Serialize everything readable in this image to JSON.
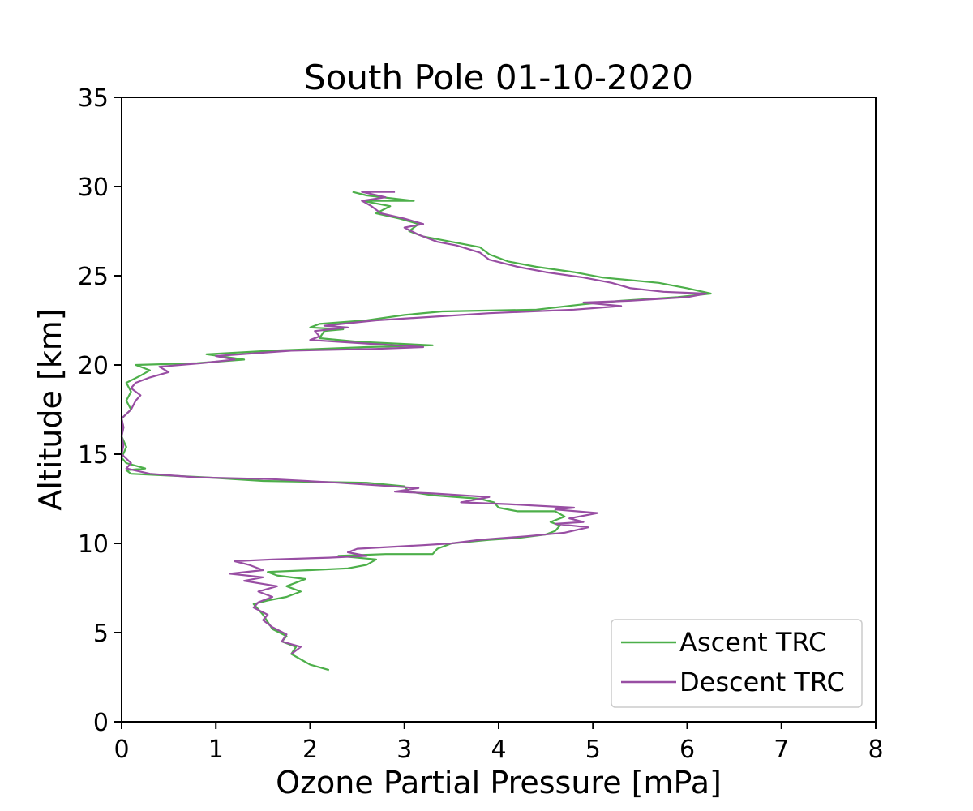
{
  "chart_data": {
    "type": "line",
    "title": "South Pole  01-10-2020",
    "xlabel": "Ozone Partial Pressure [mPa]",
    "ylabel": "Altitude [km]",
    "xlim": [
      0,
      8
    ],
    "ylim": [
      0,
      35
    ],
    "xticks": [
      "0",
      "1",
      "2",
      "3",
      "4",
      "5",
      "6",
      "7",
      "8"
    ],
    "yticks": [
      "0",
      "5",
      "10",
      "15",
      "20",
      "25",
      "30",
      "35"
    ],
    "grid": false,
    "legend_position": "bottom-right",
    "colors": {
      "ascent": "#4daf4a",
      "descent": "#984ea3"
    },
    "series": [
      {
        "name": "Ascent TRC",
        "color": "#4daf4a",
        "points": [
          [
            2.2,
            2.9
          ],
          [
            2.0,
            3.2
          ],
          [
            1.9,
            3.5
          ],
          [
            1.8,
            3.8
          ],
          [
            1.85,
            4.2
          ],
          [
            1.7,
            4.5
          ],
          [
            1.75,
            4.8
          ],
          [
            1.6,
            5.2
          ],
          [
            1.55,
            5.6
          ],
          [
            1.5,
            6.0
          ],
          [
            1.45,
            6.3
          ],
          [
            1.4,
            6.6
          ],
          [
            1.55,
            6.8
          ],
          [
            1.75,
            7.0
          ],
          [
            1.9,
            7.3
          ],
          [
            1.75,
            7.6
          ],
          [
            1.95,
            8.0
          ],
          [
            1.65,
            8.2
          ],
          [
            1.55,
            8.4
          ],
          [
            2.0,
            8.5
          ],
          [
            2.4,
            8.6
          ],
          [
            2.6,
            8.8
          ],
          [
            2.7,
            9.1
          ],
          [
            2.3,
            9.3
          ],
          [
            2.8,
            9.4
          ],
          [
            3.3,
            9.4
          ],
          [
            3.35,
            9.7
          ],
          [
            3.5,
            10.0
          ],
          [
            3.9,
            10.2
          ],
          [
            4.2,
            10.3
          ],
          [
            4.5,
            10.5
          ],
          [
            4.6,
            10.7
          ],
          [
            4.65,
            11.0
          ],
          [
            4.55,
            11.2
          ],
          [
            4.7,
            11.5
          ],
          [
            4.6,
            11.8
          ],
          [
            4.2,
            11.8
          ],
          [
            4.0,
            12.0
          ],
          [
            3.95,
            12.3
          ],
          [
            3.8,
            12.5
          ],
          [
            3.3,
            12.7
          ],
          [
            3.05,
            12.9
          ],
          [
            3.0,
            13.2
          ],
          [
            2.6,
            13.4
          ],
          [
            1.5,
            13.5
          ],
          [
            0.9,
            13.7
          ],
          [
            0.5,
            13.8
          ],
          [
            0.1,
            13.9
          ],
          [
            0.05,
            14.1
          ],
          [
            0.25,
            14.2
          ],
          [
            0.05,
            14.5
          ],
          [
            0.0,
            14.8
          ],
          [
            0.05,
            15.4
          ],
          [
            0.0,
            16.0
          ],
          [
            0.02,
            16.5
          ],
          [
            0.0,
            17.0
          ],
          [
            0.1,
            17.5
          ],
          [
            0.05,
            18.0
          ],
          [
            0.1,
            18.5
          ],
          [
            0.05,
            19.0
          ],
          [
            0.2,
            19.4
          ],
          [
            0.3,
            19.7
          ],
          [
            0.15,
            20.0
          ],
          [
            0.8,
            20.1
          ],
          [
            1.3,
            20.3
          ],
          [
            0.9,
            20.6
          ],
          [
            1.6,
            20.8
          ],
          [
            2.6,
            21.0
          ],
          [
            3.3,
            21.1
          ],
          [
            2.5,
            21.3
          ],
          [
            2.1,
            21.5
          ],
          [
            2.15,
            21.9
          ],
          [
            2.35,
            22.0
          ],
          [
            2.0,
            22.1
          ],
          [
            2.1,
            22.3
          ],
          [
            2.6,
            22.5
          ],
          [
            3.0,
            22.8
          ],
          [
            3.4,
            23.0
          ],
          [
            4.4,
            23.1
          ],
          [
            4.9,
            23.4
          ],
          [
            5.3,
            23.6
          ],
          [
            5.9,
            23.8
          ],
          [
            6.25,
            24.0
          ],
          [
            6.0,
            24.3
          ],
          [
            5.7,
            24.6
          ],
          [
            5.1,
            24.9
          ],
          [
            4.8,
            25.2
          ],
          [
            4.4,
            25.5
          ],
          [
            4.1,
            25.8
          ],
          [
            3.9,
            26.2
          ],
          [
            3.8,
            26.6
          ],
          [
            3.5,
            26.9
          ],
          [
            3.2,
            27.2
          ],
          [
            3.05,
            27.5
          ],
          [
            3.15,
            27.9
          ],
          [
            2.95,
            28.2
          ],
          [
            2.7,
            28.5
          ],
          [
            2.85,
            28.9
          ],
          [
            2.55,
            29.2
          ],
          [
            3.1,
            29.2
          ],
          [
            2.6,
            29.5
          ],
          [
            2.45,
            29.7
          ]
        ]
      },
      {
        "name": "Descent TRC",
        "color": "#984ea3",
        "points": [
          [
            1.8,
            3.8
          ],
          [
            1.9,
            4.2
          ],
          [
            1.7,
            4.5
          ],
          [
            1.75,
            4.9
          ],
          [
            1.6,
            5.3
          ],
          [
            1.5,
            5.7
          ],
          [
            1.55,
            6.0
          ],
          [
            1.4,
            6.4
          ],
          [
            1.45,
            6.7
          ],
          [
            1.6,
            7.0
          ],
          [
            1.45,
            7.3
          ],
          [
            1.65,
            7.6
          ],
          [
            1.3,
            7.9
          ],
          [
            1.5,
            8.1
          ],
          [
            1.15,
            8.3
          ],
          [
            1.5,
            8.5
          ],
          [
            1.35,
            8.8
          ],
          [
            1.2,
            9.0
          ],
          [
            1.6,
            9.1
          ],
          [
            2.2,
            9.2
          ],
          [
            2.6,
            9.3
          ],
          [
            2.4,
            9.5
          ],
          [
            2.5,
            9.7
          ],
          [
            3.2,
            9.9
          ],
          [
            3.5,
            10.0
          ],
          [
            3.8,
            10.2
          ],
          [
            4.3,
            10.4
          ],
          [
            4.7,
            10.6
          ],
          [
            4.95,
            10.9
          ],
          [
            4.6,
            11.1
          ],
          [
            4.9,
            11.2
          ],
          [
            4.75,
            11.4
          ],
          [
            5.05,
            11.7
          ],
          [
            4.6,
            11.9
          ],
          [
            4.8,
            12.0
          ],
          [
            4.1,
            12.2
          ],
          [
            3.6,
            12.3
          ],
          [
            3.9,
            12.6
          ],
          [
            3.3,
            12.8
          ],
          [
            2.9,
            12.9
          ],
          [
            3.15,
            13.1
          ],
          [
            2.3,
            13.4
          ],
          [
            1.6,
            13.6
          ],
          [
            0.8,
            13.7
          ],
          [
            0.3,
            13.9
          ],
          [
            0.05,
            14.2
          ],
          [
            0.1,
            14.5
          ],
          [
            0.0,
            15.0
          ],
          [
            0.02,
            15.5
          ],
          [
            0.0,
            16.0
          ],
          [
            0.02,
            16.5
          ],
          [
            0.0,
            17.0
          ],
          [
            0.1,
            17.5
          ],
          [
            0.15,
            18.0
          ],
          [
            0.2,
            18.3
          ],
          [
            0.1,
            18.7
          ],
          [
            0.15,
            19.0
          ],
          [
            0.3,
            19.3
          ],
          [
            0.5,
            19.6
          ],
          [
            0.4,
            19.9
          ],
          [
            0.85,
            20.1
          ],
          [
            1.2,
            20.3
          ],
          [
            1.0,
            20.5
          ],
          [
            1.8,
            20.8
          ],
          [
            2.7,
            20.9
          ],
          [
            3.2,
            21.0
          ],
          [
            2.6,
            21.2
          ],
          [
            2.0,
            21.4
          ],
          [
            2.1,
            21.6
          ],
          [
            2.05,
            21.9
          ],
          [
            2.4,
            22.1
          ],
          [
            2.15,
            22.2
          ],
          [
            2.7,
            22.5
          ],
          [
            3.3,
            22.7
          ],
          [
            3.9,
            22.9
          ],
          [
            4.8,
            23.1
          ],
          [
            5.3,
            23.3
          ],
          [
            4.9,
            23.5
          ],
          [
            5.4,
            23.6
          ],
          [
            6.0,
            23.8
          ],
          [
            6.2,
            24.0
          ],
          [
            5.75,
            24.1
          ],
          [
            5.4,
            24.3
          ],
          [
            5.2,
            24.6
          ],
          [
            4.9,
            24.9
          ],
          [
            4.5,
            25.2
          ],
          [
            4.2,
            25.5
          ],
          [
            3.9,
            25.9
          ],
          [
            3.8,
            26.3
          ],
          [
            3.55,
            26.7
          ],
          [
            3.35,
            26.9
          ],
          [
            3.15,
            27.3
          ],
          [
            3.0,
            27.7
          ],
          [
            3.2,
            27.9
          ],
          [
            3.0,
            28.2
          ],
          [
            2.75,
            28.5
          ],
          [
            2.65,
            28.9
          ],
          [
            2.55,
            29.2
          ],
          [
            2.8,
            29.4
          ],
          [
            2.55,
            29.7
          ],
          [
            2.9,
            29.7
          ]
        ]
      }
    ]
  }
}
